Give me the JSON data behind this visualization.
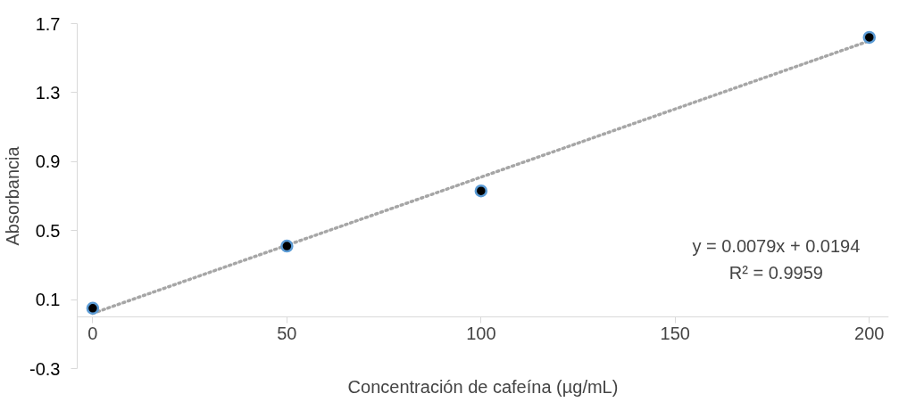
{
  "chart_data": {
    "type": "scatter",
    "xlabel": "Concentración de cafeína (µg/mL)",
    "ylabel": "Absorbancia",
    "x": [
      0,
      50,
      100,
      200
    ],
    "series": [
      {
        "color": "#000000",
        "values": [
          0.05,
          0.41,
          0.73,
          1.62
        ]
      },
      {
        "type": "line",
        "color": "#a6a6a6",
        "line_style": "dotted",
        "marker": "none",
        "x": [
          0,
          200
        ],
        "values": [
          0.02,
          1.6
        ]
      }
    ],
    "marker": "circle",
    "xlim": [
      -4,
      205
    ],
    "ylim": [
      -0.3,
      1.7
    ],
    "xticks": [
      0,
      50,
      100,
      150,
      200
    ],
    "yticks": [
      {
        "value": -0.3,
        "label": "-0.3"
      },
      0.1,
      0.5,
      0.9,
      1.3,
      1.7
    ],
    "grid": false,
    "annotations": [
      "y = 0.0079x + 0.0194",
      "R² = 0.9959"
    ]
  }
}
